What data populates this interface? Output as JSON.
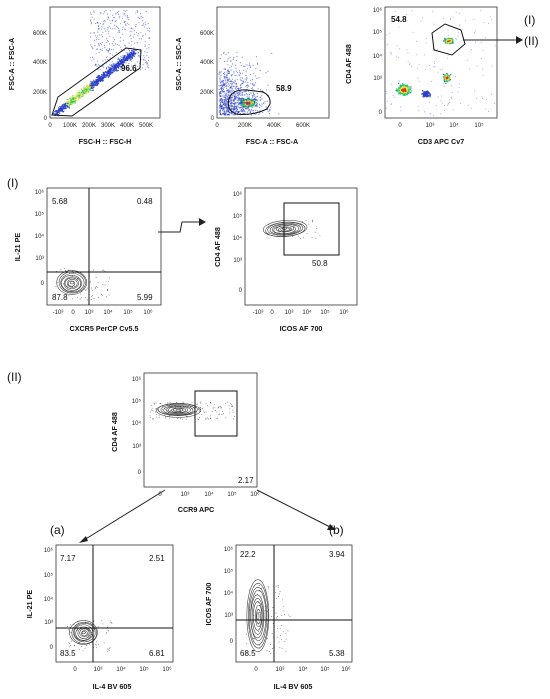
{
  "labels": {
    "sec_I_right": "(I)",
    "sec_II_right": "(II)",
    "sec_I": "(I)",
    "sec_II": "(II)",
    "sec_a": "(a)",
    "sec_b": "(b)"
  },
  "panels": {
    "p1": {
      "xlabel": "FSC-H :: FSC-H",
      "ylabel": "FSC-A :: FSC-A",
      "gate_pct": "96.6",
      "xticks": [
        "0",
        "100K",
        "200K",
        "300K",
        "400K",
        "500K"
      ],
      "yticks": [
        "0",
        "200K",
        "400K",
        "600K"
      ]
    },
    "p2": {
      "xlabel": "FSC-A :: FSC-A",
      "ylabel": "SSC-A :: SSC-A",
      "gate_pct": "58.9",
      "xticks": [
        "0",
        "200K",
        "400K",
        "600K"
      ],
      "yticks": [
        "0",
        "200K",
        "400K",
        "600K"
      ]
    },
    "p3": {
      "xlabel": "CD3 APC Cv7",
      "ylabel": "CD4 AF 488",
      "gate_pct": "54.8",
      "xticks": [
        "0",
        "10³",
        "10⁴",
        "10⁵"
      ],
      "yticks": [
        "0",
        "10³",
        "10⁴",
        "10⁵",
        "10⁶"
      ]
    },
    "p4": {
      "xlabel": "CXCR5 PerCP Cv5.5",
      "ylabel": "IL-21 PE",
      "q_ul": "5.68",
      "q_ur": "0.48",
      "q_ll": "87.8",
      "q_lr": "5.99",
      "xticks": [
        "-10³",
        "0",
        "10³",
        "10⁴",
        "10⁵",
        "10⁶"
      ],
      "yticks": [
        "0",
        "10³",
        "10⁴",
        "10⁵",
        "10⁶"
      ]
    },
    "p5": {
      "xlabel": "ICOS AF 700",
      "ylabel": "CD4 AF 488",
      "gate_pct": "50.8",
      "xticks": [
        "-10³",
        "0",
        "10³",
        "10⁴",
        "10⁵",
        "10⁶"
      ],
      "yticks": [
        "0",
        "10³",
        "10⁴",
        "10⁵",
        "10⁶"
      ]
    },
    "p6": {
      "xlabel": "CCR9 APC",
      "ylabel": "CD4 AF 488",
      "gate_pct": "2.17",
      "xticks": [
        "0",
        "10³",
        "10⁴",
        "10⁵",
        "10⁶"
      ],
      "yticks": [
        "0",
        "10³",
        "10⁴",
        "10⁵",
        "10⁶"
      ]
    },
    "p7": {
      "xlabel": "IL-4 BV 605",
      "ylabel": "IL-21 PE",
      "q_ul": "7.17",
      "q_ur": "2.51",
      "q_ll": "83.5",
      "q_lr": "6.81",
      "xticks": [
        "0",
        "10³",
        "10⁴",
        "10⁵",
        "10⁶"
      ],
      "yticks": [
        "0",
        "10³",
        "10⁴",
        "10⁵",
        "10⁶"
      ]
    },
    "p8": {
      "xlabel": "IL-4 BV 605",
      "ylabel": "ICOS AF 700",
      "q_ul": "22.2",
      "q_ur": "3.94",
      "q_ll": "68.5",
      "q_lr": "5.38",
      "xticks": [
        "0",
        "10³",
        "10⁴",
        "10⁵",
        "10⁶"
      ],
      "yticks": [
        "0",
        "10³",
        "10⁴",
        "10⁵",
        "10⁶"
      ]
    }
  },
  "colors": {
    "scatter_blue": "#2c3ec8",
    "scatter_green": "#21c46a",
    "scatter_yellow": "#f1e23a",
    "scatter_red": "#e23222",
    "contour": "#444444"
  }
}
